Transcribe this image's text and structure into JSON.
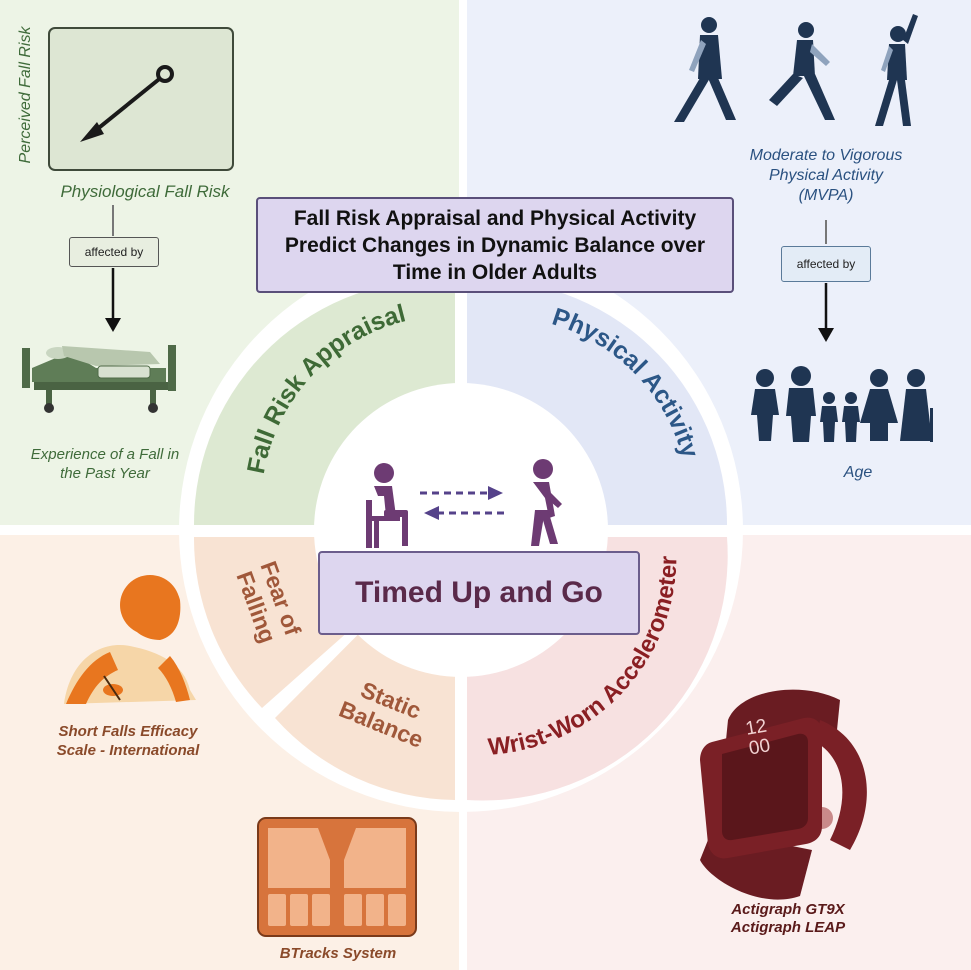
{
  "title": "Fall Risk Appraisal and Physical Activity Predict Changes in Dynamic Balance over Time in Older Adults",
  "center": {
    "label": "Timed Up and Go"
  },
  "ring": {
    "fall_risk_appraisal": "Fall Risk Appraisal",
    "physical_activity": "Physical Activity",
    "fear_of_falling_line1": "Fear of",
    "fear_of_falling_line2": "Falling",
    "static_balance_line1": "Static",
    "static_balance_line2": "Balance",
    "wrist_worn_accelerometer": "Wrist-Worn Accelerometer"
  },
  "top_left": {
    "perceived": "Perceived Fall Risk",
    "physiological": "Physiological Fall Risk",
    "affected_by": "affected by",
    "experience_line1": "Experience of a Fall in",
    "experience_line2": "the Past Year"
  },
  "top_right": {
    "mvpa_line1": "Moderate to Vigorous",
    "mvpa_line2": "Physical Activity",
    "mvpa_line3": "(MVPA)",
    "affected_by": "affected by",
    "age": "Age"
  },
  "bottom_left": {
    "sfes_line1": "Short Falls Efficacy",
    "sfes_line2": "Scale - International",
    "btracks": "BTracks System"
  },
  "bottom_right": {
    "watch_time_hours": "12",
    "watch_time_minutes": "00",
    "device_line1": "Actigraph GT9X",
    "device_line2": "Actigraph LEAP"
  },
  "colors": {
    "green_panel": "#edf4e6",
    "blue_panel": "#ecf0fa",
    "orange_panel": "#fcf0e6",
    "red_panel": "#fbefee",
    "title_fill": "#ddd6ef",
    "navy_figures": "#1f3552",
    "purple_figures": "#6d3b73",
    "watch": "#7a2026"
  }
}
